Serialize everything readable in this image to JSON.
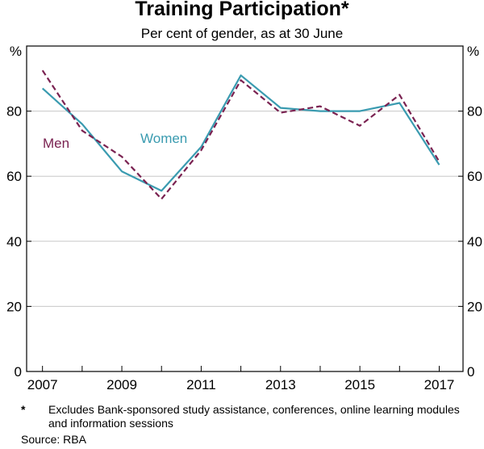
{
  "chart_data": {
    "type": "line",
    "title": "Training Participation*",
    "subtitle": "Per cent of gender, as at 30 June",
    "ylabel_left": "%",
    "ylabel_right": "%",
    "ylim": [
      0,
      100
    ],
    "yticks": [
      0,
      20,
      40,
      60,
      80
    ],
    "xlim": [
      2006.6,
      2017.6
    ],
    "xticks": [
      2007,
      2009,
      2011,
      2013,
      2015,
      2017
    ],
    "grid": true,
    "series": [
      {
        "name": "Women",
        "color": "#3a9bb0",
        "style": "solid",
        "x": [
          2007,
          2008,
          2009,
          2010,
          2011,
          2012,
          2013,
          2014,
          2015,
          2016,
          2017
        ],
        "values": [
          87,
          76,
          61.5,
          55.5,
          69,
          91,
          81,
          80,
          80,
          82.5,
          63.5
        ]
      },
      {
        "name": "Men",
        "color": "#7a2251",
        "style": "dashed",
        "x": [
          2007,
          2008,
          2009,
          2010,
          2011,
          2012,
          2013,
          2014,
          2015,
          2016,
          2017
        ],
        "values": [
          92.5,
          74,
          66,
          53,
          68,
          89.5,
          79.5,
          81.5,
          75.5,
          85,
          64.5
        ]
      }
    ]
  },
  "footnote": {
    "marker": "*",
    "text": "Excludes Bank-sponsored study assistance, conferences, online learning modules and information sessions"
  },
  "source": "Source:   RBA"
}
